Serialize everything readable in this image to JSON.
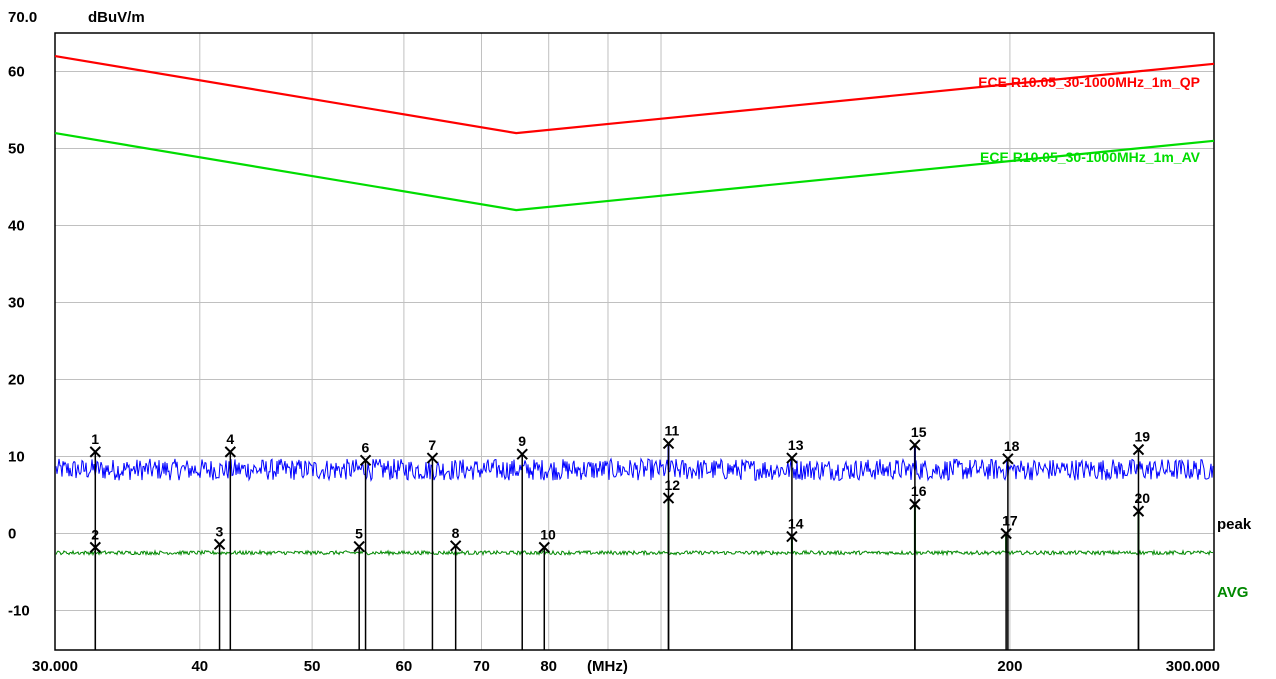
{
  "chart_data": {
    "type": "line",
    "title": "",
    "ylabel": "dBuV/m",
    "ytop_label": "70.0",
    "xunit_label": "(MHz)",
    "xscale": "log",
    "xlim": [
      30,
      300
    ],
    "ylim": [
      -15,
      70
    ],
    "yticks": [
      "60",
      "50",
      "40",
      "30",
      "20",
      "10",
      "0",
      "-10"
    ],
    "ytick_values": [
      60,
      50,
      40,
      30,
      20,
      10,
      0,
      -10
    ],
    "xticks": [
      "30.000",
      "40",
      "50",
      "60",
      "70",
      "80",
      "200",
      "300.000"
    ],
    "xtick_values": [
      30,
      40,
      50,
      60,
      70,
      80,
      200,
      300
    ],
    "x_gridlines": [
      30,
      40,
      50,
      60,
      70,
      80,
      90,
      100,
      200,
      300
    ],
    "grid": true,
    "colors": {
      "qp": "#ff0000",
      "av": "#00dd00",
      "peak": "#0000ff",
      "avg": "#008800",
      "grid": "#c0c0c0"
    },
    "limits": [
      {
        "name": "ECE R10.05_30-1000MHz_1m_QP",
        "color": "#ff0000",
        "x": [
          30,
          75,
          300
        ],
        "y": [
          62,
          52,
          61
        ]
      },
      {
        "name": "ECE R10.05_30-1000MHz_1m_AV",
        "color": "#00dd00",
        "x": [
          30,
          75,
          300
        ],
        "y": [
          52,
          42,
          51
        ]
      }
    ],
    "traces": [
      {
        "name": "peak",
        "color": "#0000ff",
        "baseline": 8.3
      },
      {
        "name": "AVG",
        "color": "#008800",
        "baseline": -2.5
      }
    ],
    "markers": [
      {
        "n": "1",
        "x": 32.5,
        "y": 10.6
      },
      {
        "n": "2",
        "x": 32.5,
        "y": -1.8
      },
      {
        "n": "3",
        "x": 41.6,
        "y": -1.4
      },
      {
        "n": "4",
        "x": 42.5,
        "y": 10.6
      },
      {
        "n": "5",
        "x": 54.9,
        "y": -1.7
      },
      {
        "n": "6",
        "x": 55.6,
        "y": 9.5
      },
      {
        "n": "7",
        "x": 63.5,
        "y": 9.8
      },
      {
        "n": "8",
        "x": 66.5,
        "y": -1.6
      },
      {
        "n": "9",
        "x": 75.9,
        "y": 10.3
      },
      {
        "n": "10",
        "x": 79.3,
        "y": -1.8
      },
      {
        "n": "11",
        "x": 101.5,
        "y": 11.7
      },
      {
        "n": "12",
        "x": 101.5,
        "y": 4.6
      },
      {
        "n": "13",
        "x": 129.7,
        "y": 9.8
      },
      {
        "n": "14",
        "x": 129.7,
        "y": -0.4
      },
      {
        "n": "15",
        "x": 165.6,
        "y": 11.5
      },
      {
        "n": "16",
        "x": 165.6,
        "y": 3.8
      },
      {
        "n": "17",
        "x": 198.5,
        "y": 0.0
      },
      {
        "n": "18",
        "x": 199.2,
        "y": 9.7
      },
      {
        "n": "19",
        "x": 258.2,
        "y": 10.9
      },
      {
        "n": "20",
        "x": 258.2,
        "y": 2.9
      }
    ]
  }
}
